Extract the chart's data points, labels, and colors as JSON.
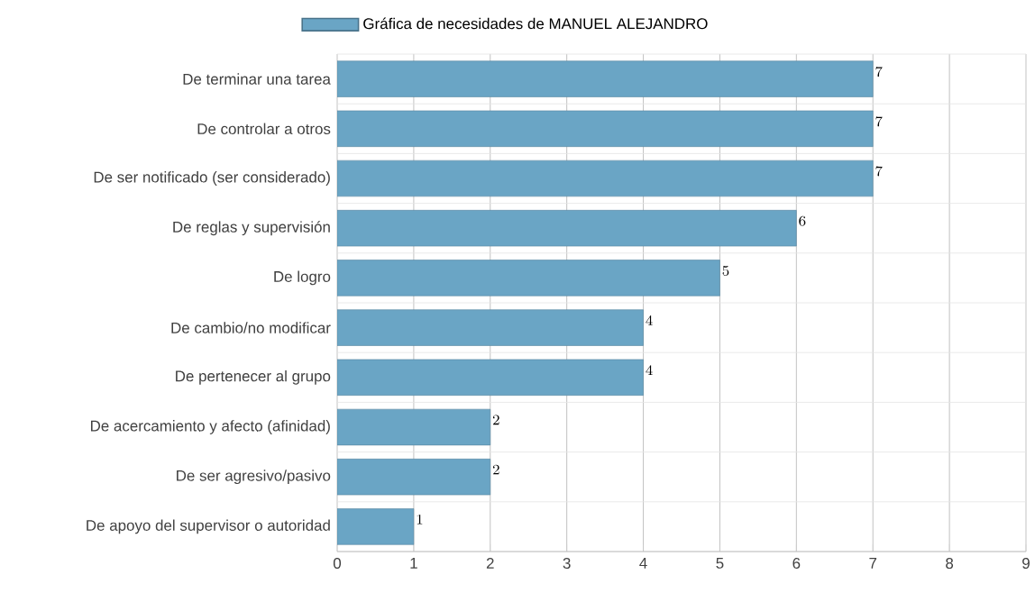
{
  "chart_data": {
    "type": "bar",
    "orientation": "horizontal",
    "categories": [
      "De terminar una tarea",
      "De controlar a otros",
      "De ser notificado (ser considerado)",
      "De reglas y supervisión",
      "De logro",
      "De cambio/no modificar",
      "De pertenecer al grupo",
      "De acercamiento y afecto (afinidad)",
      "De ser agresivo/pasivo",
      "De apoyo del supervisor o autoridad"
    ],
    "series": [
      {
        "name": "Gráfica de necesidades de MANUEL ALEJANDRO",
        "color": "#6aa5c5",
        "values": [
          7,
          7,
          7,
          6,
          5,
          4,
          4,
          2,
          2,
          1
        ]
      }
    ],
    "xlim": [
      0,
      9
    ],
    "xticks": [
      0,
      1,
      2,
      3,
      4,
      5,
      6,
      7,
      8,
      9
    ],
    "grid": true,
    "legend": "top",
    "data_labels": true
  }
}
